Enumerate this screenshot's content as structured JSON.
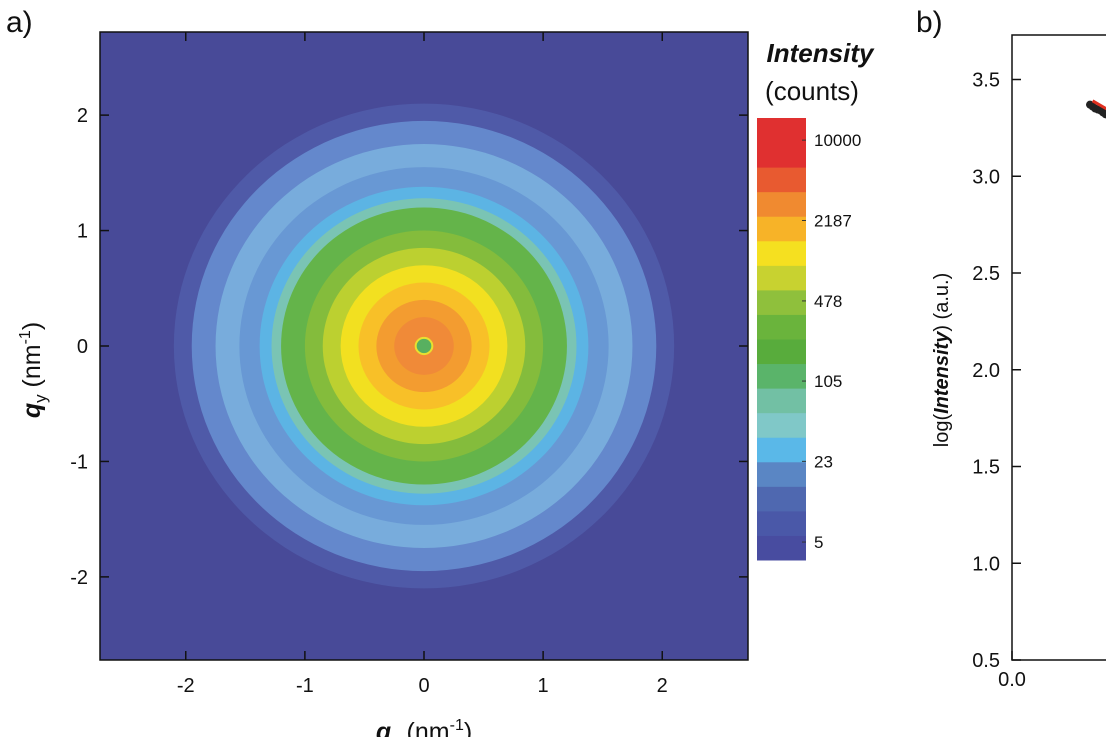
{
  "chart_data": [
    {
      "type": "heatmap",
      "panel_label": "a)",
      "x_label": [
        "q",
        "x",
        " (nm",
        "-1",
        ")"
      ],
      "y_label": [
        "q",
        "y",
        " (nm",
        "-1",
        ")"
      ],
      "xlim": [
        -2.72,
        2.72
      ],
      "ylim": [
        -2.72,
        2.72
      ],
      "xticks": [
        -2,
        -1,
        0,
        1,
        2
      ],
      "yticks": [
        -2,
        -1,
        0,
        1,
        2
      ],
      "background": "#484a98",
      "rings": {
        "radius": [
          2.1,
          1.95,
          1.75,
          1.55,
          1.38,
          1.28,
          1.2,
          1.0,
          0.85,
          0.7,
          0.55,
          0.4,
          0.25,
          0.07
        ],
        "color": [
          "#4f5aa8",
          "#6488cc",
          "#78acdc",
          "#6898d4",
          "#5cb4e4",
          "#7ac4b4",
          "#64b44a",
          "#84bc3c",
          "#bcd030",
          "#f2e020",
          "#f8c028",
          "#f39c30",
          "#f08a38",
          "#58b060"
        ]
      },
      "colorbar": {
        "title": "Intensity",
        "unit_label": "(counts)",
        "log": true,
        "lim": [
          3.56,
          15200
        ],
        "ticks": [
          5,
          23,
          105,
          478,
          2187,
          10000
        ],
        "colors": [
          "#484ca0",
          "#4a58a8",
          "#4f68b0",
          "#5a86c4",
          "#5ab8e8",
          "#80c8c8",
          "#72c0a4",
          "#5ab46a",
          "#58ac3c",
          "#6ab43c",
          "#8fc03c",
          "#c8d230",
          "#f5e020",
          "#f7b328",
          "#f08a30",
          "#e85a30",
          "#e03030",
          "#e03030"
        ]
      }
    },
    {
      "type": "line",
      "panel_label": "b)",
      "y_label": [
        "log(",
        "Intensity",
        ") (a.u.)"
      ],
      "xlim": [
        0,
        3
      ],
      "ylim": [
        0.5,
        3.73
      ],
      "xticks": [
        {
          "value": 0,
          "label": "0.0"
        }
      ],
      "yticks": [
        0.5,
        {
          "value": 1,
          "label": "1.0"
        },
        1.5,
        {
          "value": 2,
          "label": "2.0"
        },
        2.5,
        {
          "value": 3,
          "label": "3.0"
        },
        3.5
      ],
      "series": [
        {
          "color": "#222222",
          "marker": true,
          "x": [
            0.3,
            0.31,
            0.32,
            0.33,
            0.34,
            0.35,
            0.36
          ],
          "values": [
            3.37,
            3.36,
            3.35,
            3.345,
            3.34,
            3.33,
            3.32
          ]
        },
        {
          "color": "#e03020",
          "marker": false,
          "x": [
            0.31,
            0.4
          ],
          "values": [
            3.39,
            3.32
          ]
        }
      ]
    }
  ]
}
